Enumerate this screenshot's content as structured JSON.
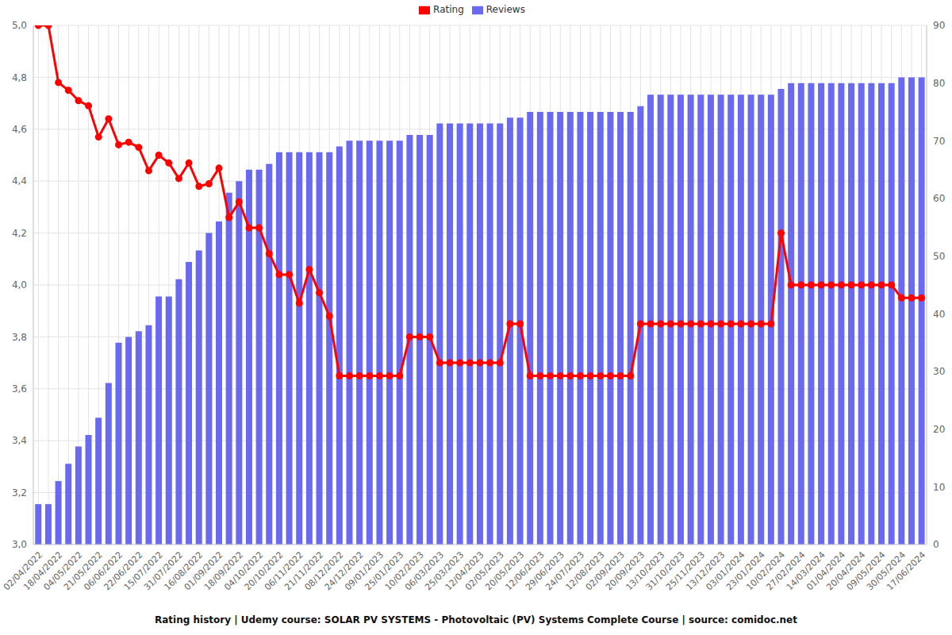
{
  "chart_data": {
    "type": "combo",
    "title": "Rating history | Udemy course: SOLAR PV SYSTEMS - Photovoltaic (PV) Systems Complete Course | source: comidoc.net",
    "categories": [
      "02/04/2022",
      null,
      "18/04/2022",
      null,
      "04/05/2022",
      null,
      "21/05/2022",
      null,
      "06/06/2022",
      null,
      "22/06/2022",
      null,
      "15/07/2022",
      null,
      "31/07/2022",
      null,
      "16/08/2022",
      null,
      "01/09/2022",
      null,
      "18/09/2022",
      null,
      "04/10/2022",
      null,
      "20/10/2022",
      null,
      "06/11/2022",
      null,
      "21/11/2022",
      null,
      "08/12/2022",
      null,
      "24/12/2022",
      null,
      "09/01/2023",
      null,
      "25/01/2023",
      null,
      "10/02/2023",
      null,
      "06/03/2023",
      null,
      "25/03/2023",
      null,
      "12/04/2023",
      null,
      "02/05/2023",
      null,
      "20/05/2023",
      null,
      "12/06/2023",
      null,
      "29/06/2023",
      null,
      "24/07/2023",
      null,
      "12/08/2023",
      null,
      "02/09/2023",
      null,
      "20/09/2023",
      null,
      "13/10/2023",
      null,
      "31/10/2023",
      null,
      "25/11/2023",
      null,
      "13/12/2023",
      null,
      "03/01/2024",
      null,
      "23/01/2024",
      null,
      "10/02/2024",
      null,
      "27/02/2024",
      null,
      "14/03/2024",
      null,
      "01/04/2024",
      null,
      "20/04/2024",
      null,
      "09/05/2024",
      null,
      "30/05/2024",
      null,
      "17/06/2024"
    ],
    "series": [
      {
        "name": "Rating",
        "type": "line",
        "color": "#ff0000",
        "marker": "circle",
        "values": [
          5.0,
          5.0,
          4.78,
          4.75,
          4.71,
          4.69,
          4.57,
          4.64,
          4.54,
          4.55,
          4.53,
          4.44,
          4.5,
          4.47,
          4.41,
          4.47,
          4.38,
          4.39,
          4.45,
          4.26,
          4.32,
          4.22,
          4.22,
          4.12,
          4.04,
          4.04,
          3.93,
          4.06,
          3.97,
          3.88,
          3.65,
          3.65,
          3.65,
          3.65,
          3.65,
          3.65,
          3.65,
          3.8,
          3.8,
          3.8,
          3.7,
          3.7,
          3.7,
          3.7,
          3.7,
          3.7,
          3.7,
          3.85,
          3.85,
          3.65,
          3.65,
          3.65,
          3.65,
          3.65,
          3.65,
          3.65,
          3.65,
          3.65,
          3.65,
          3.65,
          3.85,
          3.85,
          3.85,
          3.85,
          3.85,
          3.85,
          3.85,
          3.85,
          3.85,
          3.85,
          3.85,
          3.85,
          3.85,
          3.85,
          4.2,
          4.0,
          4.0,
          4.0,
          4.0,
          4.0,
          4.0,
          4.0,
          4.0,
          4.0,
          4.0,
          4.0,
          3.95,
          3.95,
          3.95
        ]
      },
      {
        "name": "Reviews",
        "type": "bar",
        "axis": "y2",
        "color": "#6a6af0",
        "values": [
          7,
          7,
          11,
          14,
          17,
          19,
          22,
          28,
          35,
          36,
          37,
          38,
          43,
          43,
          46,
          49,
          51,
          54,
          56,
          61,
          63,
          65,
          65,
          66,
          68,
          68,
          68,
          68,
          68,
          68,
          69,
          70,
          70,
          70,
          70,
          70,
          70,
          71,
          71,
          71,
          73,
          73,
          73,
          73,
          73,
          73,
          73,
          74,
          74,
          75,
          75,
          75,
          75,
          75,
          75,
          75,
          75,
          75,
          75,
          75,
          76,
          78,
          78,
          78,
          78,
          78,
          78,
          78,
          78,
          78,
          78,
          78,
          78,
          78,
          79,
          80,
          80,
          80,
          80,
          80,
          80,
          80,
          80,
          80,
          80,
          80,
          81,
          81,
          81
        ]
      }
    ],
    "ylim": [
      3.0,
      5.0
    ],
    "yticks": [
      {
        "value": 3.0,
        "label": "3,0"
      },
      {
        "value": 3.2,
        "label": "3,2"
      },
      {
        "value": 3.4,
        "label": "3,4"
      },
      {
        "value": 3.6,
        "label": "3,6"
      },
      {
        "value": 3.8,
        "label": "3,8"
      },
      {
        "value": 4.0,
        "label": "4,0"
      },
      {
        "value": 4.2,
        "label": "4,2"
      },
      {
        "value": 4.4,
        "label": "4,4"
      },
      {
        "value": 4.6,
        "label": "4,6"
      },
      {
        "value": 4.8,
        "label": "4,8"
      },
      {
        "value": 5.0,
        "label": "5,0"
      }
    ],
    "y2lim": [
      0,
      90
    ],
    "y2ticks": [
      0,
      10,
      20,
      30,
      40,
      50,
      60,
      70,
      80,
      90
    ],
    "grid": true,
    "legend": "top"
  }
}
